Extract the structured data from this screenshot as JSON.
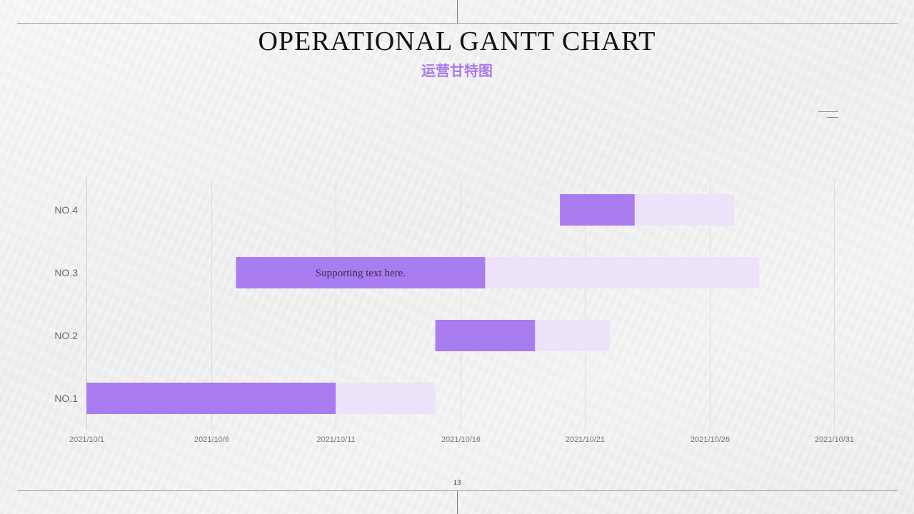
{
  "slide": {
    "title": "OPERATIONAL GANTT CHART",
    "subtitle": "运营甘特图",
    "page_number": "13"
  },
  "colors": {
    "completed": "#a97cef",
    "remaining": "#ece3fa",
    "grid": "#dcdcdc",
    "axis_text": "#777777",
    "category_text": "#666666"
  },
  "chart_data": {
    "type": "bar",
    "subtype": "stacked-horizontal-gantt",
    "categories": [
      "NO.1",
      "NO.2",
      "NO.3",
      "NO.4"
    ],
    "x_ticks": [
      "2021/10/1",
      "2021/10/6",
      "2021/10/11",
      "2021/10/16",
      "2021/10/21",
      "2021/10/26",
      "2021/10/31"
    ],
    "xlim": [
      "2021/10/1",
      "2021/10/31"
    ],
    "grid": true,
    "tasks": [
      {
        "category": "NO.1",
        "start": "2021/10/1",
        "progress_end": "2021/10/11",
        "end": "2021/10/15"
      },
      {
        "category": "NO.2",
        "start": "2021/10/15",
        "progress_end": "2021/10/19",
        "end": "2021/10/22"
      },
      {
        "category": "NO.3",
        "start": "2021/10/7",
        "progress_end": "2021/10/17",
        "end": "2021/10/28",
        "label": "Supporting text here."
      },
      {
        "category": "NO.4",
        "start": "2021/10/20",
        "progress_end": "2021/10/23",
        "end": "2021/10/27"
      }
    ]
  }
}
